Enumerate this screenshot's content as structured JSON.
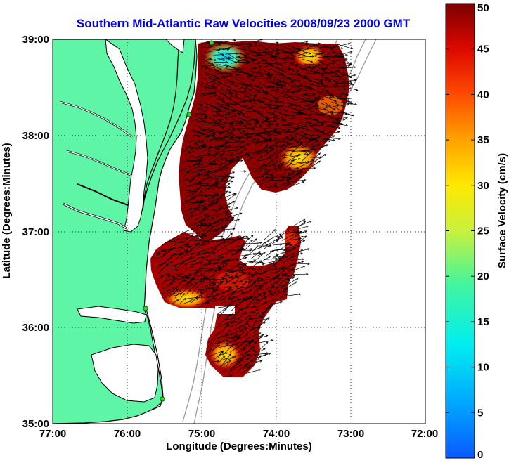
{
  "title": "Southern Mid-Atlantic Raw Velocities 2008/09/23 2000 GMT",
  "colors": {
    "title": "#0000ee",
    "land": "#5ef5a6",
    "water": "#ffffff",
    "coast": "#000000",
    "isobath": "#9a9a9a",
    "site": "#22dd22",
    "vector": "#000000"
  },
  "map": {
    "xlabel": "Longitude (Degrees:Minutes)",
    "ylabel": "Latitude (Degrees:Minutes)",
    "lon_range": [
      -77,
      -72
    ],
    "lat_range": [
      35,
      39
    ],
    "x_ticks": [
      "77:00",
      "76:00",
      "75:00",
      "74:00",
      "73:00",
      "72:00"
    ],
    "y_ticks": [
      "35:00",
      "36:00",
      "37:00",
      "38:00",
      "39:00"
    ],
    "grid": "dotted"
  },
  "colorbar": {
    "label": "Surface Velocity (cm/s)",
    "range": [
      0,
      50
    ],
    "ticks": [
      "0",
      "5",
      "10",
      "15",
      "20",
      "25",
      "30",
      "35",
      "40",
      "45",
      "50"
    ],
    "colormap": "jet"
  },
  "chart_data": {
    "type": "heatmap",
    "variable": "Surface Velocity (cm/s)",
    "units": "cm/s",
    "value_range": [
      0,
      50
    ],
    "sites": [
      {
        "lon": -74.85,
        "lat": 38.98
      },
      {
        "lon": -75.18,
        "lat": 38.22
      },
      {
        "lon": -75.7,
        "lat": 36.17
      },
      {
        "lon": -75.5,
        "lat": 35.25
      }
    ]
  }
}
